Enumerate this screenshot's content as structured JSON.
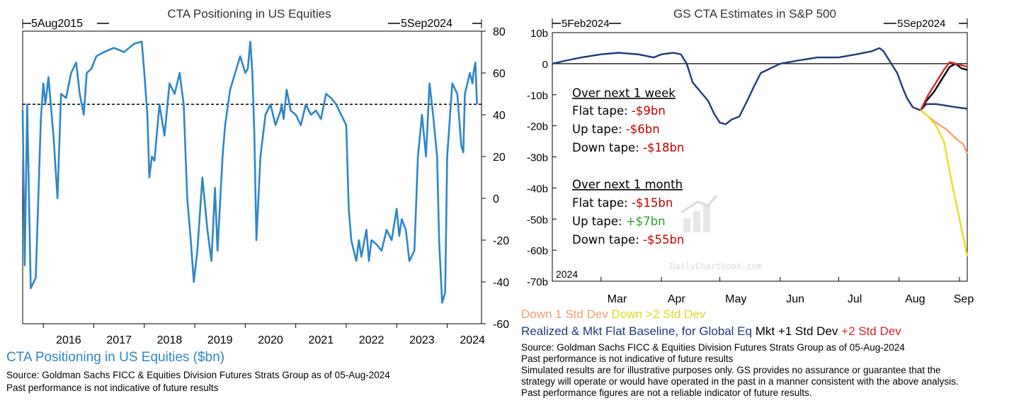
{
  "left": {
    "title": "CTA Positioning in US Equities",
    "start_label": "5Aug2015",
    "end_label": "5Sep2024",
    "footer_title": "CTA Positioning in US Equities ($bn)",
    "source": "Source: Goldman Sachs FICC & Equities Division Futures Strats Group as of 05-Aug-2024",
    "disclaimer": "Past performance is not indicative of future results",
    "colors": {
      "series": "#2e86c8",
      "footer_title": "#2e86c8"
    }
  },
  "right": {
    "title": "GS CTA Estimates in S&P 500",
    "start_label": "5Feb2024",
    "end_label": "5Sep2024",
    "year_label": "2024",
    "watermark": "DailyChartbook.com",
    "callout": {
      "week_title": "Over next 1 week",
      "week": [
        {
          "label": "Flat tape: ",
          "value": "-$9bn",
          "color": "#c00000"
        },
        {
          "label": "Up tape: ",
          "value": "-$6bn",
          "color": "#c00000"
        },
        {
          "label": "Down tape: ",
          "value": "-$18bn",
          "color": "#c00000"
        }
      ],
      "month_title": "Over next 1 month",
      "month": [
        {
          "label": "Flat tape: ",
          "value": "-$15bn",
          "color": "#c00000"
        },
        {
          "label": "Up tape: ",
          "value": "+$7bn",
          "color": "#2ea02e"
        },
        {
          "label": "Down tape: ",
          "value": "-$55bn",
          "color": "#c00000"
        }
      ]
    },
    "legend": {
      "down1": "Down 1 Std Dev",
      "down2": "Down >2 Std Dev",
      "realized": "Realized & Mkt Flat Baseline, for Global Eq",
      "mkt1": "Mkt +1 Std Dev",
      "plus2": "+2 Std Dev"
    },
    "source": "Source: Goldman Sachs FICC & Equities Division Futures Strats Group as of 05-Aug-2024",
    "notes": [
      "Past performance is not indicative of future results",
      "Simulated results are for illustrative purposes only. GS provides no assurance or guarantee that the",
      "strategy will operate or would have operated in the past in a manner consistent with the above analysis.",
      "Past performance figures are not a reliable indicator of future results."
    ],
    "colors": {
      "realized": "#1f3a7a",
      "mkt1": "#000000",
      "plus2": "#d62728",
      "down1": "#f4a070",
      "down2": "#e6e020"
    }
  },
  "chart_data": [
    {
      "type": "line",
      "title": "CTA Positioning in US Equities",
      "ylabel": "",
      "ylim": [
        -60,
        80
      ],
      "yticks": [
        80,
        60,
        40,
        20,
        0,
        -20,
        -40,
        -60
      ],
      "xticks": [
        "2016",
        "2017",
        "2018",
        "2019",
        "2020",
        "2021",
        "2022",
        "2023",
        "2024"
      ],
      "grid": false,
      "reference_line": 45,
      "series": [
        {
          "name": "CTA Positioning in US Equities ($bn)",
          "x": [
            2015.59,
            2015.63,
            2015.68,
            2015.75,
            2015.85,
            2015.95,
            2016.0,
            2016.04,
            2016.1,
            2016.2,
            2016.28,
            2016.35,
            2016.45,
            2016.55,
            2016.65,
            2016.72,
            2016.8,
            2016.86,
            2016.95,
            2017.05,
            2017.2,
            2017.4,
            2017.6,
            2017.8,
            2017.95,
            2018.0,
            2018.06,
            2018.1,
            2018.15,
            2018.2,
            2018.3,
            2018.4,
            2018.5,
            2018.6,
            2018.7,
            2018.78,
            2018.85,
            2018.92,
            2018.98,
            2019.05,
            2019.15,
            2019.25,
            2019.33,
            2019.4,
            2019.45,
            2019.55,
            2019.6,
            2019.7,
            2019.8,
            2019.9,
            2020.0,
            2020.05,
            2020.1,
            2020.14,
            2020.18,
            2020.22,
            2020.3,
            2020.4,
            2020.5,
            2020.6,
            2020.7,
            2020.72,
            2020.76,
            2020.82,
            2020.9,
            2021.0,
            2021.1,
            2021.2,
            2021.3,
            2021.4,
            2021.5,
            2021.6,
            2021.7,
            2021.8,
            2021.9,
            2022.0,
            2022.05,
            2022.1,
            2022.15,
            2022.2,
            2022.25,
            2022.3,
            2022.4,
            2022.45,
            2022.5,
            2022.6,
            2022.7,
            2022.8,
            2022.9,
            2023.0,
            2023.05,
            2023.1,
            2023.18,
            2023.25,
            2023.35,
            2023.42,
            2023.5,
            2023.58,
            2023.65,
            2023.72,
            2023.8,
            2023.84,
            2023.9,
            2023.96,
            2024.0,
            2024.1,
            2024.2,
            2024.28,
            2024.32,
            2024.35,
            2024.4,
            2024.45,
            2024.5,
            2024.52,
            2024.56,
            2024.59
          ],
          "values": [
            42,
            -32,
            45,
            -43,
            -38,
            38,
            55,
            45,
            58,
            30,
            0,
            50,
            48,
            60,
            65,
            50,
            40,
            60,
            62,
            68,
            70,
            72,
            70,
            74,
            75,
            60,
            40,
            10,
            20,
            18,
            45,
            30,
            55,
            50,
            60,
            45,
            0,
            -20,
            -40,
            -25,
            10,
            -15,
            -30,
            5,
            -25,
            20,
            35,
            52,
            60,
            68,
            60,
            62,
            75,
            60,
            30,
            -20,
            20,
            40,
            45,
            35,
            42,
            45,
            38,
            52,
            42,
            40,
            35,
            45,
            40,
            42,
            38,
            50,
            48,
            45,
            40,
            35,
            -5,
            -20,
            -25,
            -30,
            -20,
            -28,
            -15,
            -30,
            -20,
            -22,
            -25,
            -15,
            -20,
            -5,
            -18,
            -10,
            -15,
            -30,
            -25,
            20,
            40,
            20,
            55,
            40,
            20,
            -20,
            -50,
            -45,
            20,
            55,
            50,
            25,
            22,
            50,
            55,
            60,
            55,
            60,
            65,
            45
          ]
        }
      ]
    },
    {
      "type": "line",
      "title": "GS CTA Estimates in S&P 500",
      "ylabel": "",
      "ylim": [
        -70,
        10
      ],
      "yticks": [
        "10b",
        "0",
        "-10b",
        "-20b",
        "-30b",
        "-40b",
        "-50b",
        "-60b",
        "-70b"
      ],
      "xticks": [
        "Mar",
        "Apr",
        "May",
        "Jun",
        "Jul",
        "Aug",
        "Sep"
      ],
      "reference_line": 0,
      "series": [
        {
          "name": "Realized & Mkt Flat Baseline, for Global Eq",
          "x": [
            "2024-02-05",
            "2024-02-12",
            "2024-02-20",
            "2024-03-01",
            "2024-03-10",
            "2024-03-20",
            "2024-03-28",
            "2024-04-01",
            "2024-04-07",
            "2024-04-11",
            "2024-04-14",
            "2024-04-17",
            "2024-04-21",
            "2024-04-25",
            "2024-04-28",
            "2024-05-01",
            "2024-05-04",
            "2024-05-07",
            "2024-05-11",
            "2024-05-15",
            "2024-05-18",
            "2024-05-22",
            "2024-06-01",
            "2024-06-10",
            "2024-06-20",
            "2024-07-01",
            "2024-07-10",
            "2024-07-18",
            "2024-07-22",
            "2024-07-24",
            "2024-07-28",
            "2024-07-31",
            "2024-08-03",
            "2024-08-05",
            "2024-08-08",
            "2024-08-12",
            "2024-08-15",
            "2024-08-20",
            "2024-08-25",
            "2024-08-30",
            "2024-09-05"
          ],
          "values": [
            0,
            1,
            2,
            3,
            3.5,
            3,
            2,
            3,
            3.5,
            3,
            0,
            -6,
            -9,
            -12,
            -16,
            -19,
            -19.5,
            -18,
            -17,
            -12,
            -8,
            -3,
            0,
            1,
            2,
            2,
            3,
            4,
            5,
            4,
            0,
            -3,
            -8,
            -11,
            -14,
            -15,
            -13,
            -13,
            -13.5,
            -14,
            -14.5
          ]
        },
        {
          "name": "Mkt +1 Std Dev",
          "x": [
            "2024-08-12",
            "2024-08-15",
            "2024-08-19",
            "2024-08-23",
            "2024-08-27",
            "2024-08-30",
            "2024-09-02",
            "2024-09-05"
          ],
          "values": [
            -15,
            -12,
            -9,
            -5,
            -1,
            0,
            -1.5,
            -2
          ]
        },
        {
          "name": "+2 Std Dev",
          "x": [
            "2024-08-12",
            "2024-08-16",
            "2024-08-20",
            "2024-08-24",
            "2024-08-27",
            "2024-08-30",
            "2024-09-02",
            "2024-09-05"
          ],
          "values": [
            -15,
            -10,
            -6,
            -2,
            0.5,
            0,
            -0.5,
            -1
          ]
        },
        {
          "name": "Down 1 Std Dev",
          "x": [
            "2024-08-12",
            "2024-08-16",
            "2024-08-20",
            "2024-08-25",
            "2024-08-30",
            "2024-09-03",
            "2024-09-05"
          ],
          "values": [
            -15,
            -17,
            -19,
            -21,
            -24,
            -26,
            -29
          ]
        },
        {
          "name": "Down >2 Std Dev",
          "x": [
            "2024-08-12",
            "2024-08-16",
            "2024-08-20",
            "2024-08-24",
            "2024-08-28",
            "2024-09-01",
            "2024-09-03",
            "2024-09-05"
          ],
          "values": [
            -15,
            -17,
            -20,
            -25,
            -38,
            -50,
            -56,
            -62
          ]
        }
      ]
    }
  ]
}
